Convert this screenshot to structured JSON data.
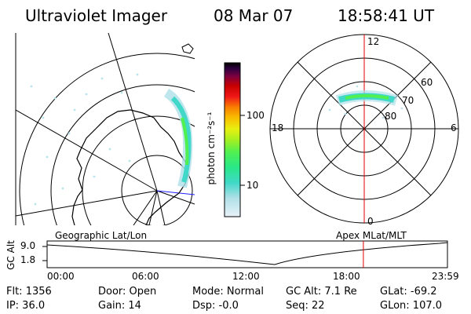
{
  "header": {
    "instrument": "Ultraviolet Imager",
    "date": "08 Mar 07",
    "time": "18:58:41 UT"
  },
  "colorbar": {
    "unit_label": "photon cm⁻²s⁻¹",
    "ticks": [
      "100",
      "10"
    ],
    "colors": [
      "#e8f2f8",
      "#b0e0e8",
      "#40d8c8",
      "#28e888",
      "#50f050",
      "#a8f020",
      "#e8f010",
      "#f8c000",
      "#f88000",
      "#f01818",
      "#c80000",
      "#800040",
      "#300040",
      "#000000"
    ]
  },
  "geo_map": {
    "label": "Geographic Lat/Lon"
  },
  "polar_map": {
    "label": "Apex MLat/MLT",
    "mlt_labels": {
      "top": "12",
      "left": "18",
      "right": "6",
      "bottom": "0"
    },
    "lat_labels": [
      "60",
      "70",
      "80"
    ]
  },
  "orbit": {
    "y_axis_label": "GC Alt",
    "y_ticks": [
      "9.0",
      "1.8"
    ],
    "time_ticks": [
      "00:00",
      "06:00",
      "12:00",
      "18:00",
      "23:59"
    ],
    "current_time_fraction": 0.79,
    "marker_color": "#e00000"
  },
  "status": {
    "flt": "Flt: 1356",
    "ip": "IP: 36.0",
    "door": "Door: Open",
    "gain": "Gain: 14",
    "mode": "Mode: Normal",
    "dsp": "Dsp:  -0.0",
    "gc_alt": "GC Alt: 7.1 Re",
    "seq": "Seq: 22",
    "glat": "GLat: -69.2",
    "glon": "GLon: 107.0"
  }
}
